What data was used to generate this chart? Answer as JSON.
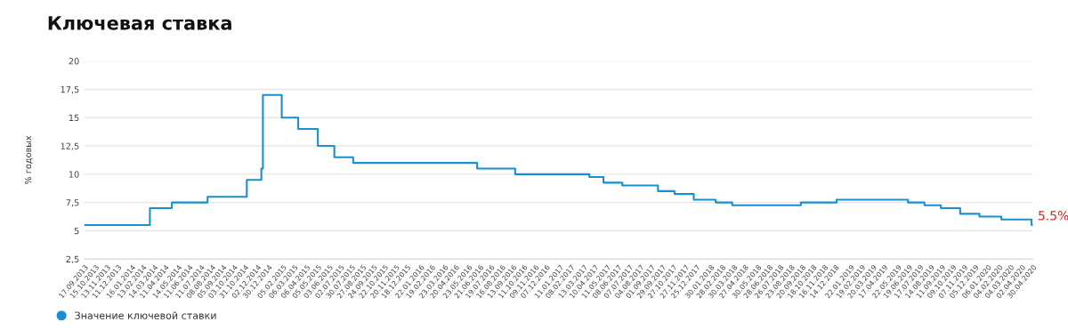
{
  "chart_data": {
    "type": "step",
    "title": "Ключевая ставка",
    "ylabel": "% годовых",
    "x": [
      "2013-09-17",
      "2014-03-03",
      "2014-04-28",
      "2014-07-28",
      "2014-11-05",
      "2014-12-12",
      "2014-12-16",
      "2015-02-02",
      "2015-03-16",
      "2015-05-05",
      "2015-06-16",
      "2015-08-03",
      "2016-06-14",
      "2016-09-19",
      "2017-03-27",
      "2017-05-02",
      "2017-06-19",
      "2017-09-18",
      "2017-10-30",
      "2017-12-18",
      "2018-02-12",
      "2018-03-26",
      "2018-09-17",
      "2018-12-17",
      "2019-06-17",
      "2019-07-29",
      "2019-09-09",
      "2019-10-28",
      "2019-12-16",
      "2020-02-10",
      "2020-04-27",
      "2020-04-30"
    ],
    "series": [
      {
        "name": "Значение ключевой ставки",
        "color": "#1a8fd0",
        "values": [
          5.5,
          7.0,
          7.5,
          8.0,
          9.5,
          10.5,
          17.0,
          15.0,
          14.0,
          12.5,
          11.5,
          11.0,
          10.5,
          10.0,
          9.75,
          9.25,
          9.0,
          8.5,
          8.25,
          7.75,
          7.5,
          7.25,
          7.5,
          7.75,
          7.5,
          7.25,
          7.0,
          6.5,
          6.25,
          6.0,
          5.5,
          5.5
        ]
      }
    ],
    "annotations": [
      {
        "text": "5.5%",
        "x": "2020-04-30",
        "y": 5.5
      }
    ],
    "ylim": [
      2.5,
      20
    ],
    "yticks": [
      {
        "value": 2.5,
        "label": "2,5"
      },
      5,
      {
        "value": 7.5,
        "label": "7,5"
      },
      10,
      {
        "value": 12.5,
        "label": "12,5"
      },
      15,
      {
        "value": 17.5,
        "label": "17,5"
      },
      20
    ],
    "xlim": [
      "2013-09-17",
      "2020-04-30"
    ],
    "xticks": [
      {
        "value": "2013-09-17",
        "label": "17.09.2013"
      },
      {
        "value": "2013-10-15",
        "label": "15.10.2013"
      },
      {
        "value": "2013-11-13",
        "label": "13.11.2013"
      },
      {
        "value": "2013-12-11",
        "label": "11.12.2013"
      },
      {
        "value": "2014-01-16",
        "label": "16.01.2014"
      },
      {
        "value": "2014-02-13",
        "label": "13.02.2014"
      },
      {
        "value": "2014-03-14",
        "label": "14.03.2014"
      },
      {
        "value": "2014-04-11",
        "label": "11.04.2014"
      },
      {
        "value": "2014-05-14",
        "label": "14.05.2014"
      },
      {
        "value": "2014-06-11",
        "label": "11.06.2014"
      },
      {
        "value": "2014-07-11",
        "label": "11.07.2014"
      },
      {
        "value": "2014-08-08",
        "label": "08.08.2014"
      },
      {
        "value": "2014-09-05",
        "label": "05.09.2014"
      },
      {
        "value": "2014-10-03",
        "label": "03.10.2014"
      },
      {
        "value": "2014-10-31",
        "label": "31.10.2014"
      },
      {
        "value": "2014-12-02",
        "label": "02.12.2014"
      },
      {
        "value": "2014-12-30",
        "label": "30.12.2014"
      },
      {
        "value": "2015-02-05",
        "label": "05.02.2015"
      },
      {
        "value": "2015-03-06",
        "label": "06.03.2015"
      },
      {
        "value": "2015-04-06",
        "label": "06.04.2015"
      },
      {
        "value": "2015-05-05",
        "label": "05.05.2015"
      },
      {
        "value": "2015-06-03",
        "label": "03.06.2015"
      },
      {
        "value": "2015-07-02",
        "label": "02.07.2015"
      },
      {
        "value": "2015-07-30",
        "label": "30.07.2015"
      },
      {
        "value": "2015-08-27",
        "label": "27.08.2015"
      },
      {
        "value": "2015-09-24",
        "label": "24.09.2015"
      },
      {
        "value": "2015-10-22",
        "label": "22.10.2015"
      },
      {
        "value": "2015-11-20",
        "label": "20.11.2015"
      },
      {
        "value": "2015-12-18",
        "label": "18.12.2015"
      },
      {
        "value": "2016-01-22",
        "label": "22.01.2016"
      },
      {
        "value": "2016-02-19",
        "label": "19.02.2016"
      },
      {
        "value": "2016-03-23",
        "label": "23.03.2016"
      },
      {
        "value": "2016-04-20",
        "label": "20.04.2016"
      },
      {
        "value": "2016-05-23",
        "label": "23.05.2016"
      },
      {
        "value": "2016-06-21",
        "label": "21.06.2016"
      },
      {
        "value": "2016-07-19",
        "label": "19.07.2016"
      },
      {
        "value": "2016-08-16",
        "label": "16.08.2016"
      },
      {
        "value": "2016-09-13",
        "label": "13.09.2016"
      },
      {
        "value": "2016-10-11",
        "label": "11.10.2016"
      },
      {
        "value": "2016-11-09",
        "label": "09.11.2016"
      },
      {
        "value": "2016-12-07",
        "label": "07.12.2016"
      },
      {
        "value": "2017-01-11",
        "label": "11.01.2017"
      },
      {
        "value": "2017-02-08",
        "label": "08.02.2017"
      },
      {
        "value": "2017-03-13",
        "label": "13.03.2017"
      },
      {
        "value": "2017-04-10",
        "label": "10.04.2017"
      },
      {
        "value": "2017-05-11",
        "label": "11.05.2017"
      },
      {
        "value": "2017-06-08",
        "label": "08.06.2017"
      },
      {
        "value": "2017-07-07",
        "label": "07.07.2017"
      },
      {
        "value": "2017-08-04",
        "label": "04.08.2017"
      },
      {
        "value": "2017-09-01",
        "label": "01.09.2017"
      },
      {
        "value": "2017-09-29",
        "label": "29.09.2017"
      },
      {
        "value": "2017-10-27",
        "label": "27.10.2017"
      },
      {
        "value": "2017-11-27",
        "label": "27.11.2017"
      },
      {
        "value": "2017-12-25",
        "label": "25.12.2017"
      },
      {
        "value": "2018-01-30",
        "label": "30.01.2018"
      },
      {
        "value": "2018-02-28",
        "label": "28.02.2018"
      },
      {
        "value": "2018-03-30",
        "label": "30.03.2018"
      },
      {
        "value": "2018-04-27",
        "label": "27.04.2018"
      },
      {
        "value": "2018-05-30",
        "label": "30.05.2018"
      },
      {
        "value": "2018-06-28",
        "label": "28.06.2018"
      },
      {
        "value": "2018-07-26",
        "label": "26.07.2018"
      },
      {
        "value": "2018-08-23",
        "label": "23.08.2018"
      },
      {
        "value": "2018-09-20",
        "label": "20.09.2018"
      },
      {
        "value": "2018-10-18",
        "label": "18.10.2018"
      },
      {
        "value": "2018-11-16",
        "label": "16.11.2018"
      },
      {
        "value": "2018-12-14",
        "label": "14.12.2018"
      },
      {
        "value": "2019-01-22",
        "label": "22.01.2019"
      },
      {
        "value": "2019-02-19",
        "label": "19.02.2019"
      },
      {
        "value": "2019-03-20",
        "label": "20.03.2019"
      },
      {
        "value": "2019-04-17",
        "label": "17.04.2019"
      },
      {
        "value": "2019-05-22",
        "label": "22.05.2019"
      },
      {
        "value": "2019-06-19",
        "label": "19.06.2019"
      },
      {
        "value": "2019-07-17",
        "label": "17.07.2019"
      },
      {
        "value": "2019-08-14",
        "label": "14.08.2019"
      },
      {
        "value": "2019-09-11",
        "label": "11.09.2019"
      },
      {
        "value": "2019-10-09",
        "label": "09.10.2019"
      },
      {
        "value": "2019-11-07",
        "label": "07.11.2019"
      },
      {
        "value": "2019-12-05",
        "label": "05.12.2019"
      },
      {
        "value": "2020-01-06",
        "label": "06.01.2020"
      },
      {
        "value": "2020-02-04",
        "label": "04.02.2020"
      },
      {
        "value": "2020-03-04",
        "label": "04.03.2020"
      },
      {
        "value": "2020-04-02",
        "label": "02.04.2020"
      },
      {
        "value": "2020-04-30",
        "label": "30.04.2020"
      }
    ],
    "grid": "y",
    "legend": "bottom left",
    "marker": "none",
    "line_style": "solid"
  }
}
